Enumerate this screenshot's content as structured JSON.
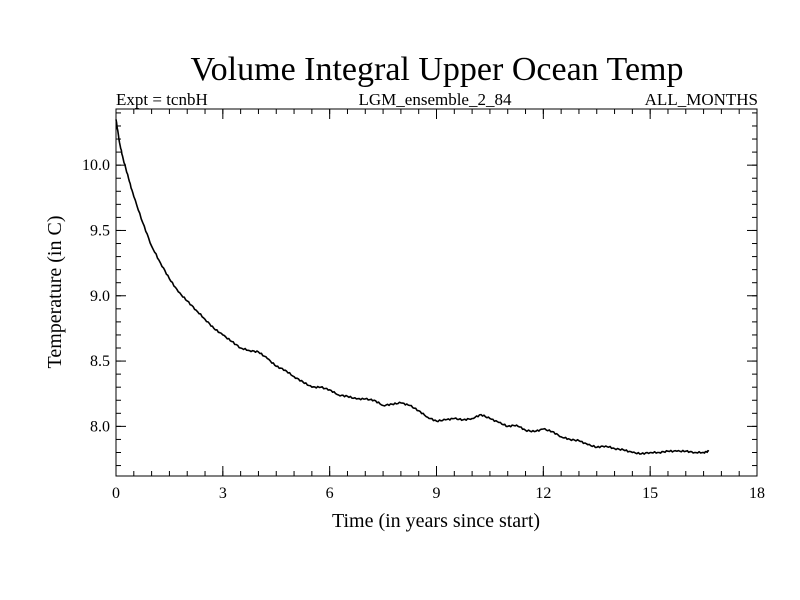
{
  "chart_data": {
    "type": "line",
    "title": "Volume Integral Upper Ocean Temp",
    "subtitle_left": "Expt = tcnbH",
    "subtitle_center": "LGM_ensemble_2_84",
    "subtitle_right": "ALL_MONTHS",
    "xlabel": "Time (in years since start)",
    "ylabel": "Temperature (in C)",
    "xlim": [
      0,
      18
    ],
    "ylim": [
      7.62,
      10.43
    ],
    "x_ticks": [
      0,
      3,
      6,
      9,
      12,
      15,
      18
    ],
    "x_tick_labels": [
      "0",
      "3",
      "6",
      "9",
      "12",
      "15",
      "18"
    ],
    "y_ticks": [
      8.0,
      8.5,
      9.0,
      9.5,
      10.0
    ],
    "y_tick_labels": [
      "8.0",
      "8.5",
      "9.0",
      "9.5",
      "10.0"
    ],
    "x_minor_step": 0.5,
    "y_minor_step": 0.1,
    "grid": false,
    "series": [
      {
        "name": "Volume Integral Upper Ocean Temp",
        "color": "#000000",
        "x": [
          0.0,
          0.1,
          0.2,
          0.35,
          0.5,
          0.75,
          1.0,
          1.25,
          1.5,
          1.75,
          2.0,
          2.25,
          2.5,
          2.75,
          3.0,
          3.25,
          3.5,
          3.75,
          4.0,
          4.25,
          4.5,
          4.75,
          5.0,
          5.25,
          5.5,
          5.75,
          6.0,
          6.25,
          6.5,
          6.75,
          7.0,
          7.25,
          7.5,
          7.75,
          8.0,
          8.25,
          8.5,
          8.75,
          9.0,
          9.25,
          9.5,
          9.75,
          10.0,
          10.25,
          10.5,
          10.75,
          11.0,
          11.25,
          11.5,
          11.75,
          12.0,
          12.25,
          12.5,
          12.75,
          13.0,
          13.25,
          13.5,
          13.75,
          14.0,
          14.25,
          14.5,
          14.75,
          15.0,
          15.25,
          15.5,
          15.75,
          16.0,
          16.25,
          16.5,
          16.65
        ],
        "y": [
          10.35,
          10.17,
          10.05,
          9.9,
          9.76,
          9.56,
          9.38,
          9.25,
          9.13,
          9.03,
          8.96,
          8.89,
          8.82,
          8.75,
          8.7,
          8.65,
          8.6,
          8.58,
          8.57,
          8.52,
          8.46,
          8.43,
          8.38,
          8.34,
          8.3,
          8.3,
          8.28,
          8.24,
          8.23,
          8.21,
          8.21,
          8.2,
          8.16,
          8.17,
          8.18,
          8.16,
          8.12,
          8.07,
          8.04,
          8.05,
          8.06,
          8.05,
          8.06,
          8.09,
          8.06,
          8.03,
          8.0,
          8.01,
          7.97,
          7.96,
          7.98,
          7.96,
          7.92,
          7.9,
          7.89,
          7.86,
          7.84,
          7.85,
          7.83,
          7.82,
          7.8,
          7.79,
          7.8,
          7.8,
          7.81,
          7.81,
          7.81,
          7.8,
          7.8,
          7.81
        ]
      }
    ]
  }
}
